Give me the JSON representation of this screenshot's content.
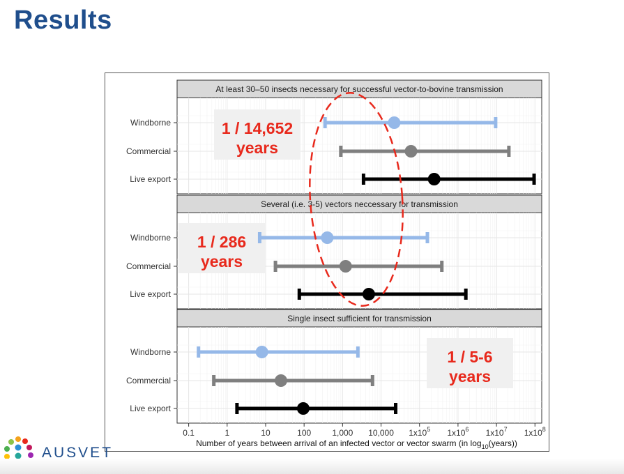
{
  "slide": {
    "title": "Results",
    "logo_text": "AUSVET"
  },
  "colors": {
    "windborne": "#95b8e8",
    "commercial": "#7f7f7f",
    "live_export": "#000000",
    "annotation": "#e8291c",
    "title": "#1f4e8c"
  },
  "chart_data": {
    "type": "interval",
    "scale": "log10",
    "xlim": [
      0.05,
      150000000.0
    ],
    "xlabel_main": "Number of years between arrival of an infected vector or vector swarm (in log",
    "xlabel_sub": "10",
    "xlabel_tail": "(years))",
    "ticks": [
      {
        "value": 0.1,
        "label": "0.1"
      },
      {
        "value": 1,
        "label": "1"
      },
      {
        "value": 10,
        "label": "10"
      },
      {
        "value": 100,
        "label": "100"
      },
      {
        "value": 1000,
        "label": "1,000"
      },
      {
        "value": 10000,
        "label": "10,000"
      },
      {
        "value": 100000,
        "label": "1x10",
        "sup": "5"
      },
      {
        "value": 1000000,
        "label": "1x10",
        "sup": "6"
      },
      {
        "value": 10000000,
        "label": "1x10",
        "sup": "7"
      },
      {
        "value": 100000000,
        "label": "1x10",
        "sup": "8"
      }
    ],
    "categories": [
      "Windborne",
      "Commercial",
      "Live export"
    ],
    "panels": [
      {
        "title": "At least 30–50 insects necessary for successful vector-to-bovine transmission",
        "annotation": [
          "1 / 14,652",
          "years"
        ],
        "series": [
          {
            "name": "Windborne",
            "low": 350,
            "mid": 22000,
            "high": 9500000
          },
          {
            "name": "Commercial",
            "low": 900,
            "mid": 60000,
            "high": 21000000
          },
          {
            "name": "Live export",
            "low": 3500,
            "mid": 240000,
            "high": 95000000
          }
        ]
      },
      {
        "title": "Several (i.e. 3-5) vectors neccessary for transmission",
        "annotation": [
          "1 / 286",
          "years"
        ],
        "series": [
          {
            "name": "Windborne",
            "low": 7,
            "mid": 400,
            "high": 160000
          },
          {
            "name": "Commercial",
            "low": 18,
            "mid": 1200,
            "high": 380000
          },
          {
            "name": "Live export",
            "low": 75,
            "mid": 4800,
            "high": 1600000
          }
        ]
      },
      {
        "title": "Single insect sufficient for transmission",
        "annotation": [
          "1 / 5-6",
          "years"
        ],
        "series": [
          {
            "name": "Windborne",
            "low": 0.18,
            "mid": 8,
            "high": 2500
          },
          {
            "name": "Commercial",
            "low": 0.45,
            "mid": 25,
            "high": 6000
          },
          {
            "name": "Live export",
            "low": 1.8,
            "mid": 95,
            "high": 24000
          }
        ]
      }
    ]
  }
}
